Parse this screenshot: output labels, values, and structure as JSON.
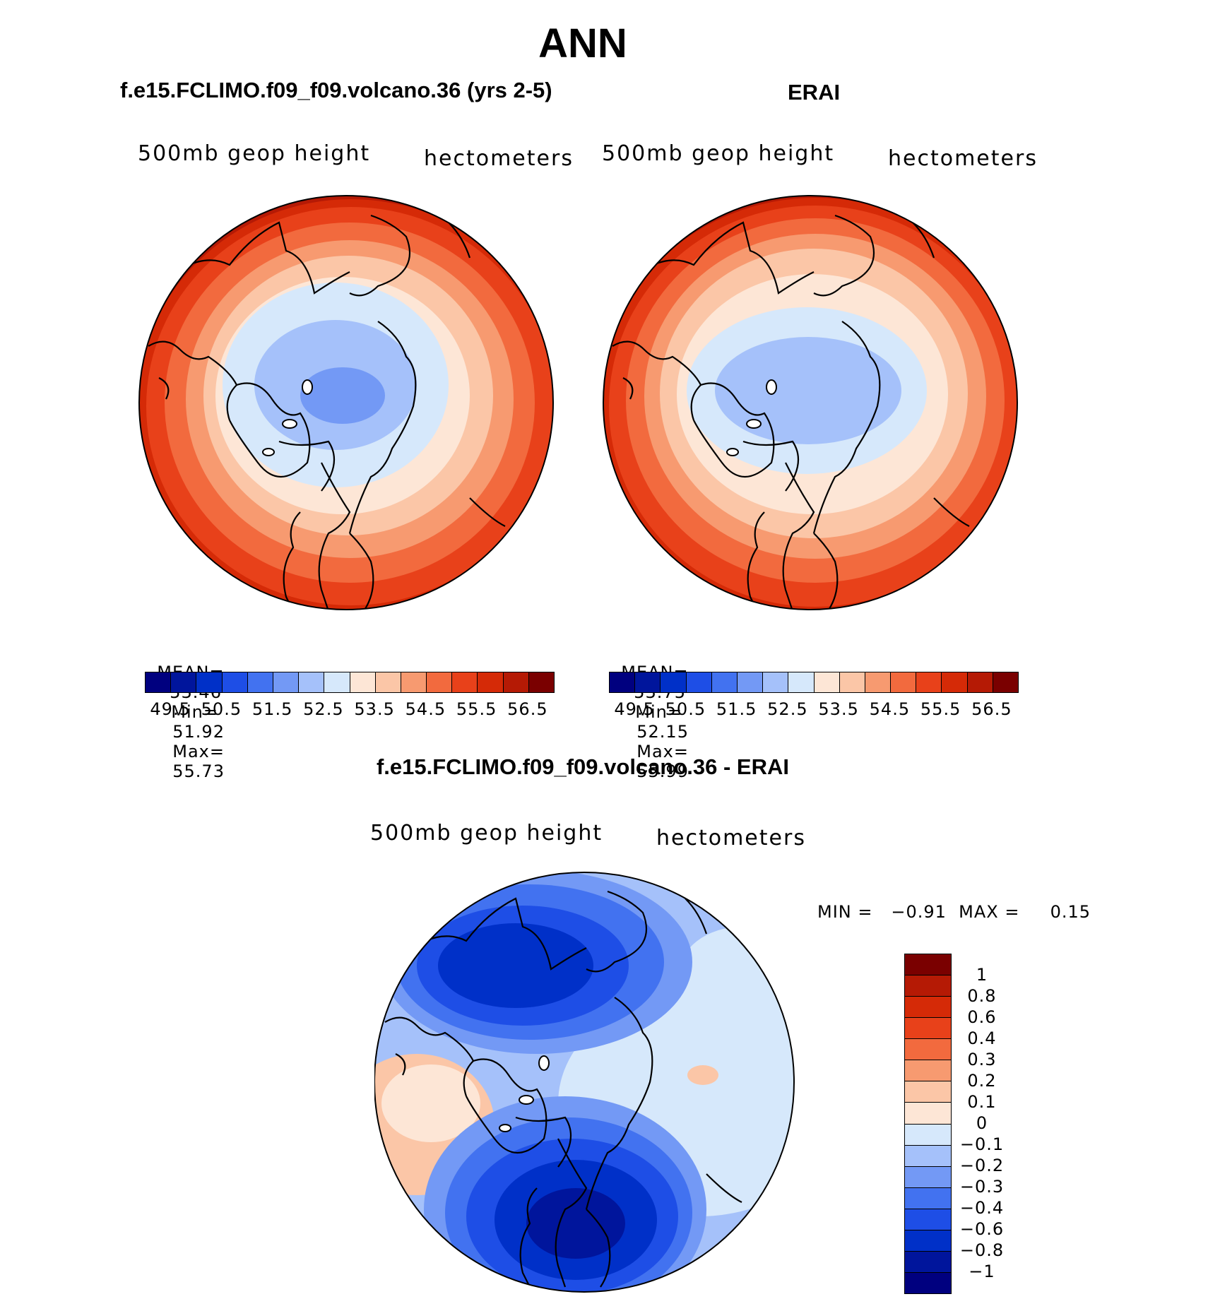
{
  "main_title": "ANN",
  "panels": [
    {
      "title": "f.e15.FCLIMO.f09_f09.volcano.36 (yrs 2-5)",
      "variable": "500mb geop height",
      "units": "hectometers",
      "mean_label": "MEAN=",
      "mean": "53.46",
      "min_label": "Min=",
      "min": "51.92",
      "max_label": "Max=",
      "max": "55.73"
    },
    {
      "title": "ERAI",
      "variable": "500mb geop height",
      "units": "hectometers",
      "mean_label": "MEAN=",
      "mean": "53.75",
      "min_label": "Min=",
      "min": "52.15",
      "max_label": "Max=",
      "max": "55.99"
    }
  ],
  "abs_colorbar": {
    "tick_labels": [
      "49.5",
      "50.5",
      "51.5",
      "52.5",
      "53.5",
      "54.5",
      "55.5",
      "56.5"
    ],
    "colors": [
      "#00007f",
      "#00159c",
      "#0030c8",
      "#1e4ee6",
      "#4272f0",
      "#7399f5",
      "#a5c1fa",
      "#d6e8fb",
      "#fde6d6",
      "#fbc6a7",
      "#f79a70",
      "#f26a3e",
      "#e8411a",
      "#d52a07",
      "#b51a05",
      "#7a0000"
    ]
  },
  "diff": {
    "title": "f.e15.FCLIMO.f09_f09.volcano.36 - ERAI",
    "variable": "500mb geop height",
    "units": "hectometers",
    "minmax_text": "MIN =   −0.91  MAX =     0.15",
    "colorbar_labels": [
      "1",
      "0.8",
      "0.6",
      "0.4",
      "0.3",
      "0.2",
      "0.1",
      "0",
      "−0.1",
      "−0.2",
      "−0.3",
      "−0.4",
      "−0.6",
      "−0.8",
      "−1"
    ],
    "colorbar_colors": [
      "#7a0000",
      "#b51a05",
      "#d52a07",
      "#e8411a",
      "#f26a3e",
      "#f79a70",
      "#fbc6a7",
      "#fde6d6",
      "#d6e8fb",
      "#a5c1fa",
      "#7399f5",
      "#4272f0",
      "#1e4ee6",
      "#0030c8",
      "#00159c",
      "#00007f"
    ]
  }
}
